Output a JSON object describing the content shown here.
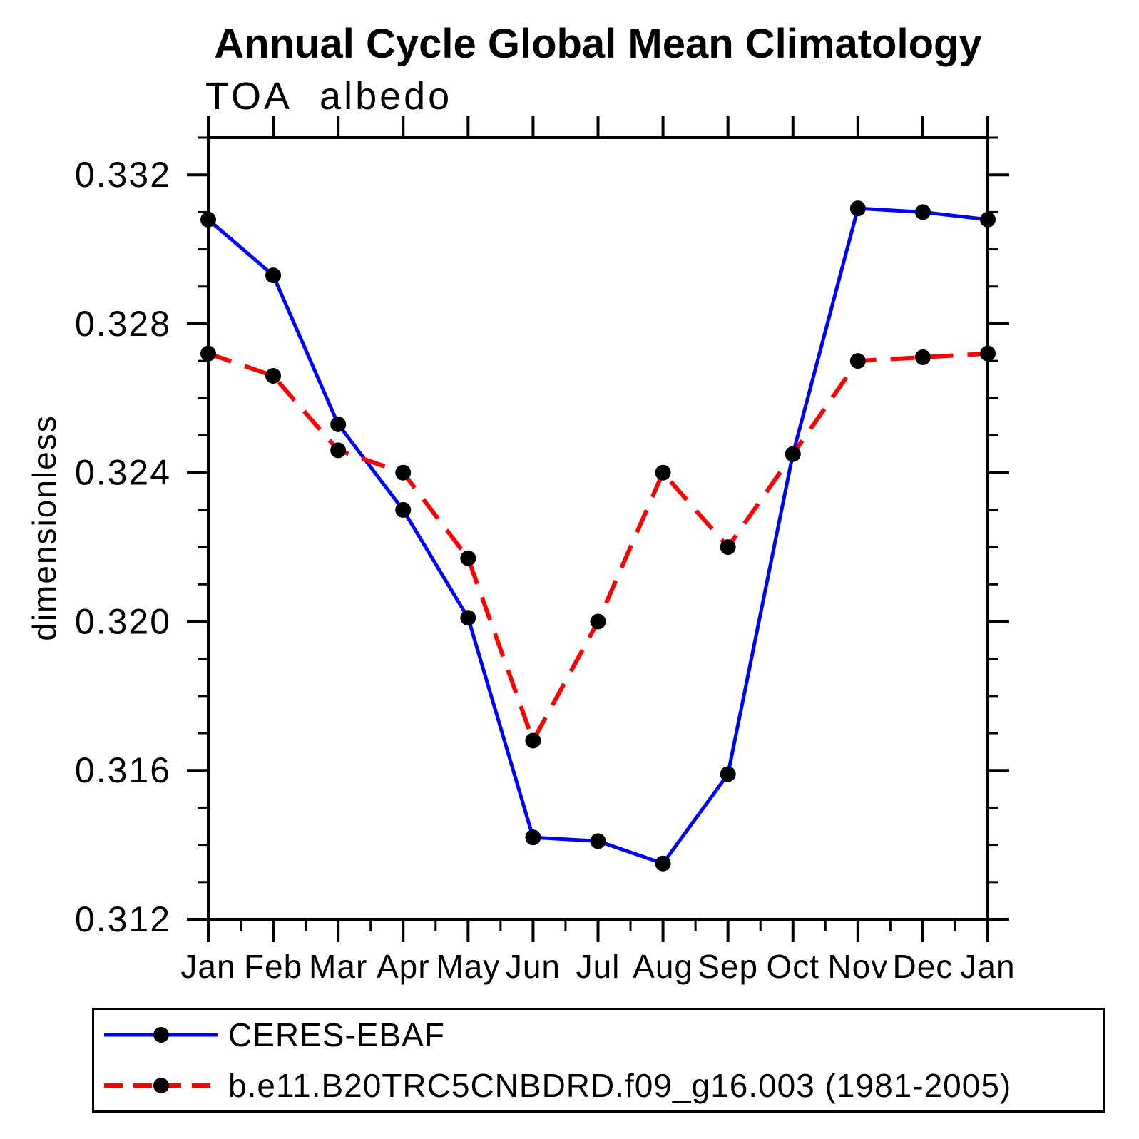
{
  "title": "Annual Cycle Global Mean Climatology",
  "chart_data": {
    "type": "line",
    "title": "Annual Cycle Global Mean Climatology",
    "subtitle": "TOA albedo",
    "xlabel": "",
    "ylabel": "dimensionless",
    "categories": [
      "Jan",
      "Feb",
      "Mar",
      "Apr",
      "May",
      "Jun",
      "Jul",
      "Aug",
      "Sep",
      "Oct",
      "Nov",
      "Dec",
      "Jan"
    ],
    "series": [
      {
        "name": "CERES-EBAF",
        "color": "#0000ff",
        "line_style": "solid",
        "marker": "circle",
        "marker_color": "#000000",
        "values": [
          0.3308,
          0.3293,
          0.3253,
          0.323,
          0.3201,
          0.3142,
          0.3141,
          0.3135,
          0.3159,
          0.3245,
          0.3311,
          0.331,
          0.3308
        ]
      },
      {
        "name": "b.e11.B20TRC5CNBDRD.f09_g16.003 (1981-2005)",
        "color": "#ff0000",
        "line_style": "dashed",
        "marker": "circle",
        "marker_color": "#000000",
        "values": [
          0.3272,
          0.3266,
          0.3246,
          0.324,
          0.3217,
          0.3168,
          0.32,
          0.324,
          0.322,
          0.3245,
          0.327,
          0.3271,
          0.3272
        ]
      }
    ],
    "ylim": [
      0.312,
      0.333
    ],
    "yticks": [
      "0.312",
      "0.316",
      "0.320",
      "0.324",
      "0.328",
      "0.332"
    ],
    "ytick_minor_step": 0.001,
    "xtick_minor": "half-month",
    "grid": false,
    "legend_position": "bottom-left-box",
    "axis_color": "#000000"
  }
}
